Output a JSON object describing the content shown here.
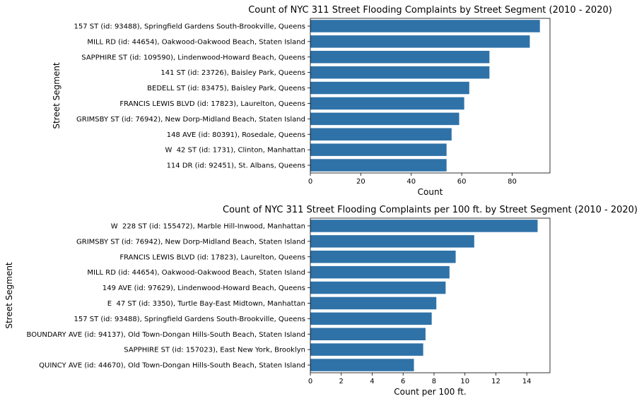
{
  "chart_data": [
    {
      "type": "bar",
      "orientation": "horizontal",
      "title": "Count of NYC 311 Street Flooding Complaints by Street Segment (2010 - 2020)",
      "xlabel": "Count",
      "ylabel": "Street Segment",
      "xlim": [
        0,
        95
      ],
      "xticks": [
        "0",
        "20",
        "40",
        "60",
        "80"
      ],
      "grid": false,
      "bar_color": "#2f72a8",
      "categories": [
        "157 ST (id: 93488), Springfield Gardens South-Brookville, Queens",
        "MILL RD (id: 44654), Oakwood-Oakwood Beach, Staten Island",
        "SAPPHIRE ST (id: 109590), Lindenwood-Howard Beach, Queens",
        "141 ST (id: 23726), Baisley Park, Queens",
        "BEDELL ST (id: 83475), Baisley Park, Queens",
        "FRANCIS LEWIS BLVD (id: 17823), Laurelton, Queens",
        "GRIMSBY ST (id: 76942), New Dorp-Midland Beach, Staten Island",
        "148 AVE (id: 80391), Rosedale, Queens",
        "W  42 ST (id: 1731), Clinton, Manhattan",
        "114 DR (id: 92451), St. Albans, Queens"
      ],
      "values": [
        91,
        87,
        71,
        71,
        63,
        61,
        59,
        56,
        54,
        54
      ]
    },
    {
      "type": "bar",
      "orientation": "horizontal",
      "title": "Count of NYC 311 Street Flooding Complaints per 100 ft. by Street Segment (2010 - 2020)",
      "xlabel": "Count per 100 ft.",
      "ylabel": "Street Segment",
      "xlim": [
        0,
        15.5
      ],
      "xticks": [
        "0",
        "2",
        "4",
        "6",
        "8",
        "10",
        "12",
        "14"
      ],
      "grid": false,
      "bar_color": "#2f72a8",
      "categories": [
        "W  228 ST (id: 155472), Marble Hill-Inwood, Manhattan",
        "GRIMSBY ST (id: 76942), New Dorp-Midland Beach, Staten Island",
        "FRANCIS LEWIS BLVD (id: 17823), Laurelton, Queens",
        "MILL RD (id: 44654), Oakwood-Oakwood Beach, Staten Island",
        "149 AVE (id: 97629), Lindenwood-Howard Beach, Queens",
        "E  47 ST (id: 3350), Turtle Bay-East Midtown, Manhattan",
        "157 ST (id: 93488), Springfield Gardens South-Brookville, Queens",
        "BOUNDARY AVE (id: 94137), Old Town-Dongan Hills-South Beach, Staten Island",
        "SAPPHIRE ST (id: 157023), East New York, Brooklyn",
        "QUINCY AVE (id: 44670), Old Town-Dongan Hills-South Beach, Staten Island"
      ],
      "values": [
        14.7,
        10.6,
        9.4,
        9.0,
        8.75,
        8.15,
        7.85,
        7.45,
        7.3,
        6.7
      ]
    }
  ]
}
